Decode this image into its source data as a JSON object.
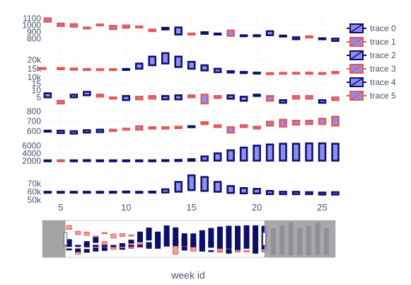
{
  "chart_data": {
    "type": "candlestick",
    "xlabel": "week id",
    "x_range": [
      3.6,
      26
    ],
    "x_ticks": [
      5,
      10,
      15,
      20,
      25
    ],
    "range_slider": {
      "x_range": [
        1,
        34
      ],
      "selected": [
        3.6,
        26
      ]
    },
    "colors": {
      "increasing": "#e45756",
      "decreasing": "#0d0d6b",
      "fill": "#8e8ef0",
      "grid": "#dddddd",
      "text": "#44546a",
      "slider_mask": "#9e9e9e"
    },
    "legend": [
      {
        "label": "trace 0"
      },
      {
        "label": "trace 1"
      },
      {
        "label": "trace 2"
      },
      {
        "label": "trace 3"
      },
      {
        "label": "trace 4"
      },
      {
        "label": "trace 5"
      }
    ],
    "panels": [
      {
        "y_range": [
          720,
          1120
        ],
        "y_ticks": [
          {
            "v": 800,
            "t": "800"
          },
          {
            "v": 900,
            "t": "900"
          },
          {
            "v": 1000,
            "t": "1000"
          },
          {
            "v": 1100,
            "t": "1100"
          }
        ],
        "bars": [
          {
            "x": 4,
            "lo": 1050,
            "hi": 1100,
            "inc": true
          },
          {
            "x": 5,
            "lo": 985,
            "hi": 1025,
            "inc": true
          },
          {
            "x": 6,
            "lo": 975,
            "hi": 1015,
            "inc": true
          },
          {
            "x": 7,
            "lo": 955,
            "hi": 965,
            "inc": true
          },
          {
            "x": 8,
            "lo": 995,
            "hi": 1010,
            "inc": true
          },
          {
            "x": 9,
            "lo": 940,
            "hi": 990,
            "inc": true
          },
          {
            "x": 10,
            "lo": 960,
            "hi": 995,
            "inc": true
          },
          {
            "x": 11,
            "lo": 965,
            "hi": 980,
            "inc": true
          },
          {
            "x": 12,
            "lo": 910,
            "hi": 935,
            "inc": true
          },
          {
            "x": 13,
            "lo": 935,
            "hi": 960,
            "inc": false
          },
          {
            "x": 14,
            "lo": 860,
            "hi": 965,
            "inc": false
          },
          {
            "x": 15,
            "lo": 860,
            "hi": 875,
            "inc": true
          },
          {
            "x": 16,
            "lo": 870,
            "hi": 895,
            "inc": false
          },
          {
            "x": 17,
            "lo": 865,
            "hi": 875,
            "inc": false
          },
          {
            "x": 18,
            "lo": 840,
            "hi": 920,
            "inc": true
          },
          {
            "x": 19,
            "lo": 845,
            "hi": 850,
            "inc": false
          },
          {
            "x": 20,
            "lo": 845,
            "hi": 850,
            "inc": false
          },
          {
            "x": 21,
            "lo": 850,
            "hi": 910,
            "inc": false
          },
          {
            "x": 22,
            "lo": 835,
            "hi": 845,
            "inc": false
          },
          {
            "x": 23,
            "lo": 790,
            "hi": 820,
            "inc": false
          },
          {
            "x": 24,
            "lo": 815,
            "hi": 835,
            "inc": true
          },
          {
            "x": 25,
            "lo": 795,
            "hi": 805,
            "inc": false
          },
          {
            "x": 26,
            "lo": 765,
            "hi": 800,
            "inc": false
          }
        ]
      },
      {
        "y_range": [
          10500,
          26000
        ],
        "y_ticks": [
          {
            "v": 10000,
            "t": "10k"
          },
          {
            "v": 15000,
            "t": "15k"
          },
          {
            "v": 20000,
            "t": "20k"
          }
        ],
        "bars": [
          {
            "x": 3.6,
            "lo": 14800,
            "hi": 15500,
            "inc": true
          },
          {
            "x": 5,
            "lo": 14700,
            "hi": 15500,
            "inc": true
          },
          {
            "x": 6,
            "lo": 14400,
            "hi": 15200,
            "inc": true
          },
          {
            "x": 7,
            "lo": 14200,
            "hi": 14900,
            "inc": true
          },
          {
            "x": 8,
            "lo": 14200,
            "hi": 14800,
            "inc": true
          },
          {
            "x": 9,
            "lo": 14300,
            "hi": 14800,
            "inc": true
          },
          {
            "x": 10,
            "lo": 14400,
            "hi": 14900,
            "inc": false
          },
          {
            "x": 11,
            "lo": 15000,
            "hi": 18000,
            "inc": false
          },
          {
            "x": 12,
            "lo": 17000,
            "hi": 22000,
            "inc": false
          },
          {
            "x": 13,
            "lo": 18000,
            "hi": 24000,
            "inc": false
          },
          {
            "x": 14,
            "lo": 16000,
            "hi": 22000,
            "inc": false
          },
          {
            "x": 15,
            "lo": 15000,
            "hi": 19000,
            "inc": false
          },
          {
            "x": 16,
            "lo": 14000,
            "hi": 17000,
            "inc": false
          },
          {
            "x": 17,
            "lo": 13000,
            "hi": 15000,
            "inc": false
          },
          {
            "x": 18,
            "lo": 12800,
            "hi": 13600,
            "inc": false
          },
          {
            "x": 19,
            "lo": 12500,
            "hi": 13200,
            "inc": false
          },
          {
            "x": 20,
            "lo": 12400,
            "hi": 12800,
            "inc": false
          },
          {
            "x": 21,
            "lo": 12000,
            "hi": 12500,
            "inc": true
          },
          {
            "x": 22,
            "lo": 12300,
            "hi": 12700,
            "inc": true
          },
          {
            "x": 23,
            "lo": 12100,
            "hi": 12700,
            "inc": true
          },
          {
            "x": 24,
            "lo": 12100,
            "hi": 12800,
            "inc": true
          },
          {
            "x": 25,
            "lo": 12000,
            "hi": 12600,
            "inc": true
          },
          {
            "x": 26,
            "lo": 12400,
            "hi": 13200,
            "inc": true
          }
        ]
      },
      {
        "y_range": [
          0,
          16
        ],
        "y_ticks": [
          {
            "v": 5,
            "t": "5"
          },
          {
            "v": 10,
            "t": "10"
          },
          {
            "v": 15,
            "t": "15"
          }
        ],
        "bars": [
          {
            "x": 4,
            "lo": 5,
            "hi": 8,
            "inc": false
          },
          {
            "x": 5,
            "lo": 0.5,
            "hi": 2.5,
            "inc": true
          },
          {
            "x": 6,
            "lo": 5,
            "hi": 7,
            "inc": false
          },
          {
            "x": 7,
            "lo": 6.5,
            "hi": 9,
            "inc": false
          },
          {
            "x": 8,
            "lo": 5.5,
            "hi": 7,
            "inc": true
          },
          {
            "x": 9,
            "lo": 4,
            "hi": 5,
            "inc": true
          },
          {
            "x": 10,
            "lo": 3,
            "hi": 6,
            "inc": false
          },
          {
            "x": 11,
            "lo": 3.5,
            "hi": 5.5,
            "inc": true
          },
          {
            "x": 12,
            "lo": 4,
            "hi": 6,
            "inc": true
          },
          {
            "x": 13,
            "lo": 3.5,
            "hi": 6,
            "inc": false
          },
          {
            "x": 14,
            "lo": 3.5,
            "hi": 6.5,
            "inc": false
          },
          {
            "x": 15,
            "lo": 5,
            "hi": 6.5,
            "inc": true
          },
          {
            "x": 16,
            "lo": 0.5,
            "hi": 7,
            "inc": true
          },
          {
            "x": 17,
            "lo": 4.5,
            "hi": 6,
            "inc": true
          },
          {
            "x": 18,
            "lo": 4,
            "hi": 6.5,
            "inc": false
          },
          {
            "x": 19,
            "lo": 2.5,
            "hi": 5.5,
            "inc": false
          },
          {
            "x": 20,
            "lo": 6,
            "hi": 7,
            "inc": false
          },
          {
            "x": 21,
            "lo": 2.5,
            "hi": 6,
            "inc": true
          },
          {
            "x": 22,
            "lo": 1,
            "hi": 3,
            "inc": false
          },
          {
            "x": 23,
            "lo": 4,
            "hi": 6,
            "inc": true
          },
          {
            "x": 24,
            "lo": 4,
            "hi": 6,
            "inc": true
          },
          {
            "x": 25,
            "lo": 1,
            "hi": 3,
            "inc": false
          },
          {
            "x": 26,
            "lo": 3,
            "hi": 5,
            "inc": true
          }
        ]
      },
      {
        "y_range": [
          550,
          820
        ],
        "y_ticks": [
          {
            "v": 600,
            "t": "600"
          },
          {
            "v": 700,
            "t": "700"
          },
          {
            "v": 800,
            "t": "800"
          }
        ],
        "bars": [
          {
            "x": 4,
            "lo": 595,
            "hi": 605,
            "inc": false
          },
          {
            "x": 5,
            "lo": 580,
            "hi": 605,
            "inc": false
          },
          {
            "x": 6,
            "lo": 575,
            "hi": 600,
            "inc": false
          },
          {
            "x": 7,
            "lo": 585,
            "hi": 610,
            "inc": false
          },
          {
            "x": 8,
            "lo": 590,
            "hi": 615,
            "inc": false
          },
          {
            "x": 9,
            "lo": 600,
            "hi": 615,
            "inc": true
          },
          {
            "x": 10,
            "lo": 615,
            "hi": 625,
            "inc": true
          },
          {
            "x": 11,
            "lo": 615,
            "hi": 650,
            "inc": true
          },
          {
            "x": 12,
            "lo": 625,
            "hi": 640,
            "inc": true
          },
          {
            "x": 13,
            "lo": 625,
            "hi": 640,
            "inc": true
          },
          {
            "x": 14,
            "lo": 630,
            "hi": 645,
            "inc": true
          },
          {
            "x": 15,
            "lo": 645,
            "hi": 650,
            "inc": false
          },
          {
            "x": 16,
            "lo": 670,
            "hi": 690,
            "inc": true
          },
          {
            "x": 17,
            "lo": 640,
            "hi": 660,
            "inc": true
          },
          {
            "x": 18,
            "lo": 585,
            "hi": 640,
            "inc": true
          },
          {
            "x": 19,
            "lo": 640,
            "hi": 660,
            "inc": true
          },
          {
            "x": 20,
            "lo": 625,
            "hi": 645,
            "inc": true
          },
          {
            "x": 21,
            "lo": 655,
            "hi": 695,
            "inc": true
          },
          {
            "x": 22,
            "lo": 645,
            "hi": 715,
            "inc": true
          },
          {
            "x": 23,
            "lo": 665,
            "hi": 705,
            "inc": true
          },
          {
            "x": 24,
            "lo": 670,
            "hi": 705,
            "inc": true
          },
          {
            "x": 25,
            "lo": 670,
            "hi": 725,
            "inc": true
          },
          {
            "x": 26,
            "lo": 655,
            "hi": 745,
            "inc": true
          }
        ]
      },
      {
        "y_range": [
          0,
          7000
        ],
        "y_ticks": [
          {
            "v": 2000,
            "t": "2000"
          },
          {
            "v": 4000,
            "t": "4000"
          },
          {
            "v": 6000,
            "t": "6000"
          }
        ],
        "bars": [
          {
            "x": 4,
            "lo": 2000,
            "hi": 2200,
            "inc": false
          },
          {
            "x": 5,
            "lo": 2000,
            "hi": 2200,
            "inc": true
          },
          {
            "x": 6,
            "lo": 2000,
            "hi": 2200,
            "inc": false
          },
          {
            "x": 7,
            "lo": 2000,
            "hi": 2250,
            "inc": false
          },
          {
            "x": 8,
            "lo": 2000,
            "hi": 2200,
            "inc": false
          },
          {
            "x": 9,
            "lo": 2000,
            "hi": 2200,
            "inc": false
          },
          {
            "x": 10,
            "lo": 2000,
            "hi": 2200,
            "inc": false
          },
          {
            "x": 11,
            "lo": 2000,
            "hi": 2200,
            "inc": false
          },
          {
            "x": 12,
            "lo": 2000,
            "hi": 2200,
            "inc": false
          },
          {
            "x": 13,
            "lo": 2000,
            "hi": 2250,
            "inc": false
          },
          {
            "x": 14,
            "lo": 2000,
            "hi": 2300,
            "inc": false
          },
          {
            "x": 15,
            "lo": 2050,
            "hi": 2500,
            "inc": false
          },
          {
            "x": 16,
            "lo": 2100,
            "hi": 3200,
            "inc": false
          },
          {
            "x": 17,
            "lo": 2100,
            "hi": 4000,
            "inc": false
          },
          {
            "x": 18,
            "lo": 2100,
            "hi": 4800,
            "inc": false
          },
          {
            "x": 19,
            "lo": 2100,
            "hi": 5500,
            "inc": false
          },
          {
            "x": 20,
            "lo": 2100,
            "hi": 6000,
            "inc": false
          },
          {
            "x": 21,
            "lo": 2100,
            "hi": 6300,
            "inc": false
          },
          {
            "x": 22,
            "lo": 2100,
            "hi": 6500,
            "inc": false
          },
          {
            "x": 23,
            "lo": 2100,
            "hi": 6500,
            "inc": false
          },
          {
            "x": 24,
            "lo": 2100,
            "hi": 6600,
            "inc": false
          },
          {
            "x": 25,
            "lo": 2100,
            "hi": 6600,
            "inc": false
          },
          {
            "x": 26,
            "lo": 2100,
            "hi": 6500,
            "inc": false
          }
        ]
      },
      {
        "y_range": [
          50000,
          82000
        ],
        "y_ticks": [
          {
            "v": 50000,
            "t": "50k"
          },
          {
            "v": 60000,
            "t": "60k"
          },
          {
            "v": 70000,
            "t": "70k"
          }
        ],
        "bars": [
          {
            "x": 4,
            "lo": 59000,
            "hi": 60000,
            "inc": false
          },
          {
            "x": 5,
            "lo": 59000,
            "hi": 60000,
            "inc": false
          },
          {
            "x": 6,
            "lo": 59000,
            "hi": 60000,
            "inc": false
          },
          {
            "x": 7,
            "lo": 59000,
            "hi": 60000,
            "inc": false
          },
          {
            "x": 8,
            "lo": 59000,
            "hi": 60000,
            "inc": false
          },
          {
            "x": 9,
            "lo": 59000,
            "hi": 60000,
            "inc": false
          },
          {
            "x": 10,
            "lo": 59200,
            "hi": 60300,
            "inc": false
          },
          {
            "x": 11,
            "lo": 59000,
            "hi": 60000,
            "inc": false
          },
          {
            "x": 12,
            "lo": 59000,
            "hi": 60200,
            "inc": false
          },
          {
            "x": 13,
            "lo": 59000,
            "hi": 63000,
            "inc": false
          },
          {
            "x": 14,
            "lo": 60000,
            "hi": 72000,
            "inc": false
          },
          {
            "x": 15,
            "lo": 62000,
            "hi": 80000,
            "inc": false
          },
          {
            "x": 16,
            "lo": 61000,
            "hi": 78000,
            "inc": false
          },
          {
            "x": 17,
            "lo": 60000,
            "hi": 72000,
            "inc": false
          },
          {
            "x": 18,
            "lo": 58500,
            "hi": 67000,
            "inc": false
          },
          {
            "x": 19,
            "lo": 58000,
            "hi": 64500,
            "inc": false
          },
          {
            "x": 20,
            "lo": 58000,
            "hi": 63500,
            "inc": false
          },
          {
            "x": 21,
            "lo": 57000,
            "hi": 61000,
            "inc": false
          },
          {
            "x": 22,
            "lo": 57000,
            "hi": 60000,
            "inc": false
          },
          {
            "x": 23,
            "lo": 57000,
            "hi": 60000,
            "inc": false
          },
          {
            "x": 24,
            "lo": 57000,
            "hi": 59500,
            "inc": false
          },
          {
            "x": 25,
            "lo": 56500,
            "hi": 59000,
            "inc": false
          },
          {
            "x": 26,
            "lo": 56500,
            "hi": 59500,
            "inc": false
          }
        ]
      }
    ]
  }
}
